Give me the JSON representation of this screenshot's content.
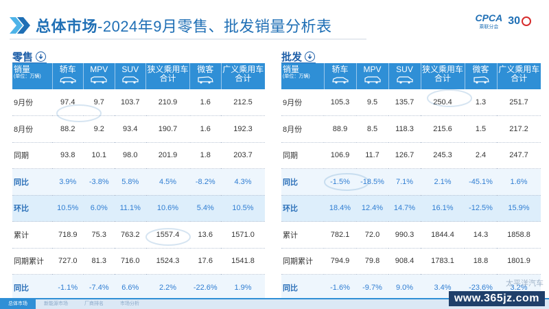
{
  "header": {
    "title_main": "总体市场",
    "title_sub": "-2024年9月零售、批发销量分析表",
    "logo_text": "CPCA",
    "logo_sub": "乘联分会",
    "logo_anniv": "30"
  },
  "columns": [
    "轿车",
    "MPV",
    "SUV",
    "狭义乘用车合计",
    "微客",
    "广义乘用车合计"
  ],
  "first_col": {
    "label": "销量",
    "unit": "(单位：万辆)"
  },
  "retail": {
    "label": "零售",
    "rows": [
      {
        "label": "9月份",
        "style": "plain",
        "values": [
          "97.4",
          "9.7",
          "103.7",
          "210.9",
          "1.6",
          "212.5"
        ]
      },
      {
        "label": "8月份",
        "style": "plain",
        "values": [
          "88.2",
          "9.2",
          "93.4",
          "190.7",
          "1.6",
          "192.3"
        ]
      },
      {
        "label": "同期",
        "style": "plain",
        "values": [
          "93.8",
          "10.1",
          "98.0",
          "201.9",
          "1.8",
          "203.7"
        ]
      },
      {
        "label": "同比",
        "style": "blue",
        "values": [
          "3.9%",
          "-3.8%",
          "5.8%",
          "4.5%",
          "-8.2%",
          "4.3%"
        ]
      },
      {
        "label": "环比",
        "style": "blue2",
        "values": [
          "10.5%",
          "6.0%",
          "11.1%",
          "10.6%",
          "5.4%",
          "10.5%"
        ]
      },
      {
        "label": "累计",
        "style": "plain",
        "values": [
          "718.9",
          "75.3",
          "763.2",
          "1557.4",
          "13.6",
          "1571.0"
        ]
      },
      {
        "label": "同期累计",
        "style": "plain",
        "values": [
          "727.0",
          "81.3",
          "716.0",
          "1524.3",
          "17.6",
          "1541.8"
        ]
      },
      {
        "label": "同比",
        "style": "blue",
        "values": [
          "-1.1%",
          "-7.4%",
          "6.6%",
          "2.2%",
          "-22.6%",
          "1.9%"
        ]
      }
    ]
  },
  "wholesale": {
    "label": "批发",
    "rows": [
      {
        "label": "9月份",
        "style": "plain",
        "values": [
          "105.3",
          "9.5",
          "135.7",
          "250.4",
          "1.3",
          "251.7"
        ]
      },
      {
        "label": "8月份",
        "style": "plain",
        "values": [
          "88.9",
          "8.5",
          "118.3",
          "215.6",
          "1.5",
          "217.2"
        ]
      },
      {
        "label": "同期",
        "style": "plain",
        "values": [
          "106.9",
          "11.7",
          "126.7",
          "245.3",
          "2.4",
          "247.7"
        ]
      },
      {
        "label": "同比",
        "style": "blue",
        "values": [
          "-1.5%",
          "-18.5%",
          "7.1%",
          "2.1%",
          "-45.1%",
          "1.6%"
        ]
      },
      {
        "label": "环比",
        "style": "blue2",
        "values": [
          "18.4%",
          "12.4%",
          "14.7%",
          "16.1%",
          "-12.5%",
          "15.9%"
        ]
      },
      {
        "label": "累计",
        "style": "plain",
        "values": [
          "782.1",
          "72.0",
          "990.3",
          "1844.4",
          "14.3",
          "1858.8"
        ]
      },
      {
        "label": "同期累计",
        "style": "plain",
        "values": [
          "794.9",
          "79.8",
          "908.4",
          "1783.1",
          "18.8",
          "1801.9"
        ]
      },
      {
        "label": "同比",
        "style": "blue",
        "values": [
          "-1.6%",
          "-9.7%",
          "9.0%",
          "3.4%",
          "-23.6%",
          "3.2%"
        ]
      }
    ]
  },
  "footer": {
    "nav": [
      "总体市场",
      "新能源市场",
      "厂商排名",
      "市场分析"
    ],
    "watermark": "太平洋汽车",
    "site": "www.365jz.com"
  },
  "colors": {
    "accent": "#2f8fd6",
    "title": "#1f6fb5"
  }
}
